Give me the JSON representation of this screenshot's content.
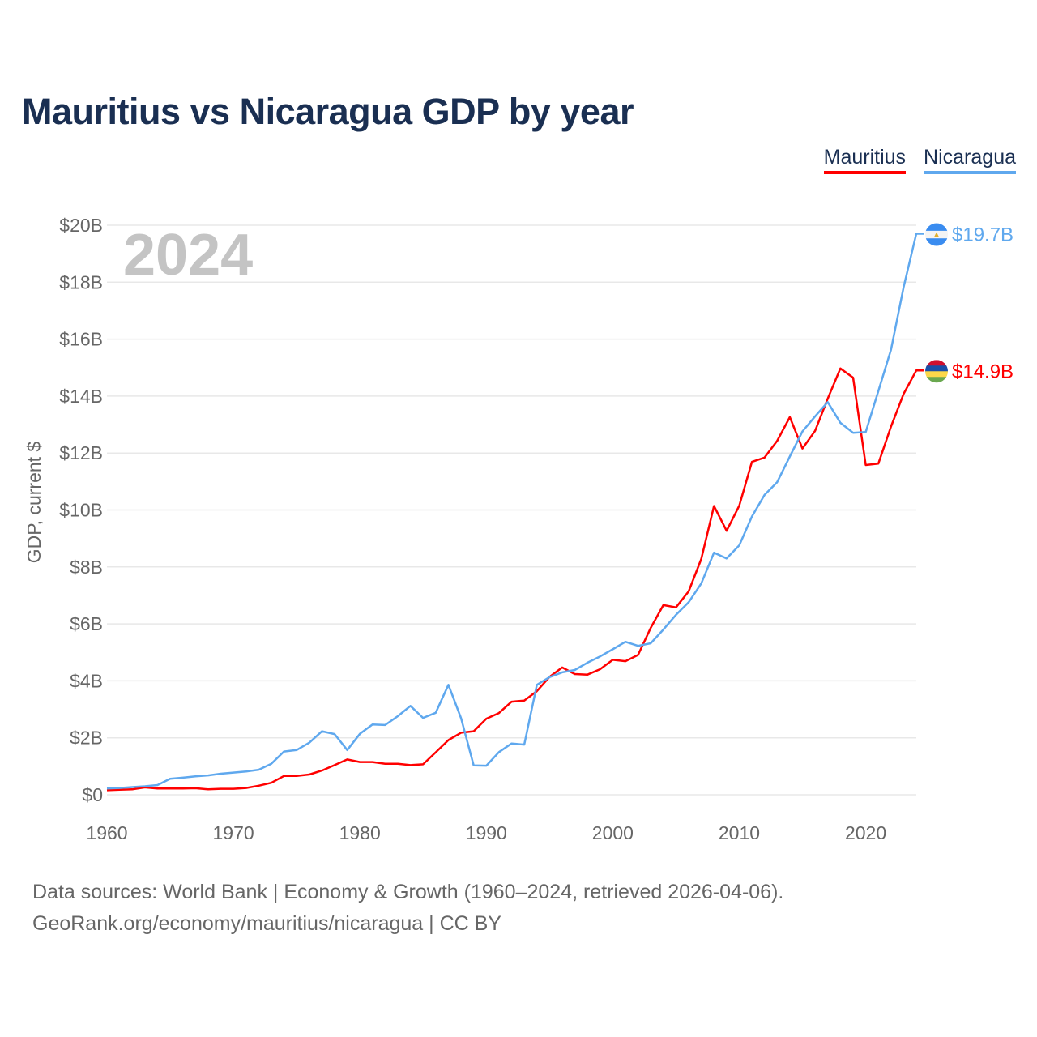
{
  "title": "Mauritius vs Nicaragua GDP by year",
  "footer": {
    "line1": "Data sources: World Bank | Economy & Growth (1960–2024, retrieved 2026-04-06).",
    "line2": "GeoRank.org/economy/mauritius/nicaragua | CC BY"
  },
  "chart_data": {
    "type": "line",
    "title": "Mauritius vs Nicaragua GDP by year",
    "ylabel": "GDP, current $",
    "xlabel": "",
    "year_label": "2024",
    "xlim": [
      1960,
      2024
    ],
    "ylim": [
      0,
      20
    ],
    "grid": true,
    "legend_position": "top-right",
    "x_ticks": [
      1960,
      1970,
      1980,
      1990,
      2000,
      2010,
      2020
    ],
    "y_ticks": [
      0,
      2,
      4,
      6,
      8,
      10,
      12,
      14,
      16,
      18,
      20
    ],
    "y_tick_labels": [
      "$0",
      "$2B",
      "$4B",
      "$6B",
      "$8B",
      "$10B",
      "$12B",
      "$14B",
      "$16B",
      "$18B",
      "$20B"
    ],
    "x_start": 1960,
    "series": [
      {
        "name": "Mauritius",
        "color": "#ff0000",
        "end_label": "$14.9B",
        "flag": "mauritius-flag",
        "values": [
          0.16,
          0.18,
          0.19,
          0.26,
          0.22,
          0.22,
          0.22,
          0.23,
          0.19,
          0.21,
          0.21,
          0.24,
          0.32,
          0.42,
          0.66,
          0.66,
          0.71,
          0.85,
          1.04,
          1.24,
          1.15,
          1.15,
          1.09,
          1.09,
          1.04,
          1.07,
          1.49,
          1.92,
          2.18,
          2.23,
          2.67,
          2.87,
          3.27,
          3.31,
          3.64,
          4.14,
          4.47,
          4.24,
          4.22,
          4.41,
          4.74,
          4.69,
          4.91,
          5.86,
          6.66,
          6.58,
          7.14,
          8.28,
          10.14,
          9.27,
          10.15,
          11.69,
          11.84,
          12.43,
          13.26,
          12.16,
          12.78,
          13.91,
          14.97,
          14.65,
          11.58,
          11.63,
          12.93,
          14.08,
          14.9
        ]
      },
      {
        "name": "Nicaragua",
        "color": "#5fa8ee",
        "end_label": "$19.7B",
        "flag": "nicaragua-flag",
        "values": [
          0.22,
          0.24,
          0.27,
          0.3,
          0.34,
          0.56,
          0.6,
          0.65,
          0.68,
          0.74,
          0.78,
          0.82,
          0.88,
          1.09,
          1.52,
          1.57,
          1.83,
          2.23,
          2.13,
          1.57,
          2.14,
          2.47,
          2.45,
          2.76,
          3.12,
          2.7,
          2.88,
          3.86,
          2.69,
          1.03,
          1.02,
          1.5,
          1.8,
          1.76,
          3.86,
          4.13,
          4.3,
          4.38,
          4.64,
          4.86,
          5.11,
          5.37,
          5.23,
          5.32,
          5.8,
          6.32,
          6.76,
          7.42,
          8.5,
          8.3,
          8.76,
          9.77,
          10.53,
          10.98,
          11.88,
          12.76,
          13.29,
          13.79,
          13.06,
          12.71,
          12.74,
          14.18,
          15.63,
          17.83,
          19.7
        ]
      }
    ]
  }
}
